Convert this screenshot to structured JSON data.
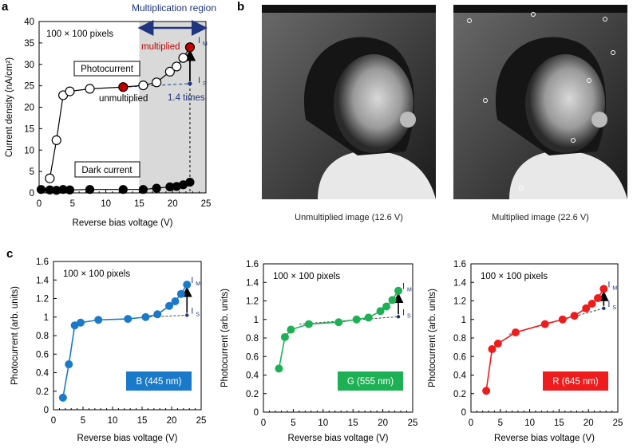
{
  "panel_letters": {
    "a": "a",
    "b": "b",
    "c": "c"
  },
  "colors": {
    "blue": "#1a7ac9",
    "green": "#1db055",
    "red": "#ee1c1c",
    "navy": "#1f3580",
    "marker_red": "#c00000",
    "shade": "#d9d9d9"
  },
  "panel_b": {
    "caption_left": "Unmultiplied image (12.6 V)",
    "caption_right": "Multiplied image (22.6 V)"
  },
  "chart_data": [
    {
      "type": "line",
      "title": "",
      "xlabel": "Reverse bias voltage (V)",
      "ylabel": "Current density (nA/cm²)",
      "xlim": [
        0,
        25
      ],
      "ylim": [
        0,
        40
      ],
      "xticks": [
        "0",
        "5",
        "10",
        "15",
        "20",
        "25"
      ],
      "yticks": [
        "0",
        "5",
        "10",
        "15",
        "20",
        "25",
        "30",
        "35",
        "40"
      ],
      "annotations": {
        "pixels": "100 × 100 pixels",
        "region": "Multiplication region",
        "region_range": [
          15,
          25
        ],
        "photocurrent": "Photocurrent",
        "dark": "Dark current",
        "unmultiplied": "unmultiplied",
        "multiplied": "multiplied",
        "im": "I",
        "im_sub": "M",
        "is": "I",
        "is_sub": "S",
        "ratio": "1.4 times",
        "is_value": 25.5
      },
      "series": [
        {
          "name": "Photocurrent",
          "marker": "open",
          "x": [
            1.6,
            2.6,
            3.6,
            4.6,
            7.6,
            12.6,
            15.6,
            17.6,
            19.6,
            20.6,
            21.6,
            22.6
          ],
          "y": [
            3.4,
            12.3,
            22.8,
            23.7,
            24.3,
            24.7,
            25.1,
            25.8,
            28.3,
            29.5,
            31.5,
            34.0
          ],
          "highlight": [
            12.6,
            22.6
          ]
        },
        {
          "name": "Dark current",
          "marker": "filled",
          "x": [
            0.3,
            1.6,
            2.6,
            3.6,
            4.6,
            7.6,
            12.6,
            15.6,
            17.6,
            19.6,
            20.6,
            21.6,
            22.6
          ],
          "y": [
            0.8,
            0.7,
            0.6,
            0.8,
            0.7,
            0.8,
            0.8,
            0.8,
            1.1,
            1.4,
            1.5,
            1.9,
            2.5
          ]
        }
      ]
    },
    {
      "type": "line",
      "xlabel": "Reverse bias voltage (V)",
      "ylabel": "Photocurrent (arb. units)",
      "xlim": [
        0,
        25
      ],
      "ylim": [
        0,
        1.6
      ],
      "xticks": [
        "0",
        "5",
        "10",
        "15",
        "20",
        "25"
      ],
      "yticks": [
        "0",
        "0.2",
        "0.4",
        "0.6",
        "0.8",
        "1",
        "1.2",
        "1.4",
        "1.6"
      ],
      "pixels": "100 × 100 pixels",
      "legend": "B (445 nm)",
      "color": "#1a7ac9",
      "im": "I",
      "im_sub": "M",
      "is": "I",
      "is_sub": "S",
      "is_value": 1.02,
      "fit_start": 15.6,
      "series": [
        {
          "name": "B (445 nm)",
          "x": [
            1.6,
            2.6,
            3.6,
            4.6,
            7.6,
            12.6,
            15.6,
            17.6,
            19.6,
            20.6,
            21.6,
            22.6
          ],
          "y": [
            0.13,
            0.49,
            0.91,
            0.94,
            0.97,
            0.98,
            1.0,
            1.03,
            1.12,
            1.17,
            1.25,
            1.35
          ]
        }
      ]
    },
    {
      "type": "line",
      "xlabel": "Reverse bias voltage (V)",
      "ylabel": "Photocurrent (arb. units)",
      "xlim": [
        0,
        25
      ],
      "ylim": [
        0,
        1.6
      ],
      "xticks": [
        "0",
        "5",
        "10",
        "15",
        "20",
        "25"
      ],
      "yticks": [
        "0",
        "0.2",
        "0.4",
        "0.6",
        "0.8",
        "1",
        "1.2",
        "1.4",
        "1.6"
      ],
      "pixels": "100 × 100 pixels",
      "legend": "G (555 nm)",
      "color": "#1db055",
      "im": "I",
      "im_sub": "M",
      "is": "I",
      "is_sub": "S",
      "is_value": 1.03,
      "fit_start": 6,
      "series": [
        {
          "name": "G (555 nm)",
          "x": [
            2.6,
            3.6,
            4.6,
            7.6,
            12.6,
            15.6,
            17.6,
            19.6,
            20.6,
            21.6,
            22.6
          ],
          "y": [
            0.47,
            0.81,
            0.89,
            0.95,
            0.97,
            1.0,
            1.02,
            1.09,
            1.14,
            1.21,
            1.31
          ]
        }
      ]
    },
    {
      "type": "line",
      "xlabel": "Reverse bias voltage (V)",
      "ylabel": "Photocurrent (arb. units)",
      "xlim": [
        0,
        25
      ],
      "ylim": [
        0,
        1.6
      ],
      "xticks": [
        "0",
        "5",
        "10",
        "15",
        "20",
        "25"
      ],
      "yticks": [
        "0",
        "0.2",
        "0.4",
        "0.6",
        "0.8",
        "1",
        "1.2",
        "1.4",
        "1.6"
      ],
      "pixels": "100 × 100 pixels",
      "legend": "R (645 nm)",
      "color": "#ee1c1c",
      "im": "I",
      "im_sub": "M",
      "is": "I",
      "is_sub": "S",
      "is_value": 1.12,
      "fit_start": 6.5,
      "series": [
        {
          "name": "R (645 nm)",
          "x": [
            2.6,
            3.6,
            4.6,
            7.6,
            12.6,
            15.6,
            17.6,
            19.6,
            20.6,
            21.6,
            22.6
          ],
          "y": [
            0.23,
            0.68,
            0.74,
            0.86,
            0.95,
            1.0,
            1.04,
            1.12,
            1.17,
            1.23,
            1.33
          ]
        }
      ]
    }
  ]
}
